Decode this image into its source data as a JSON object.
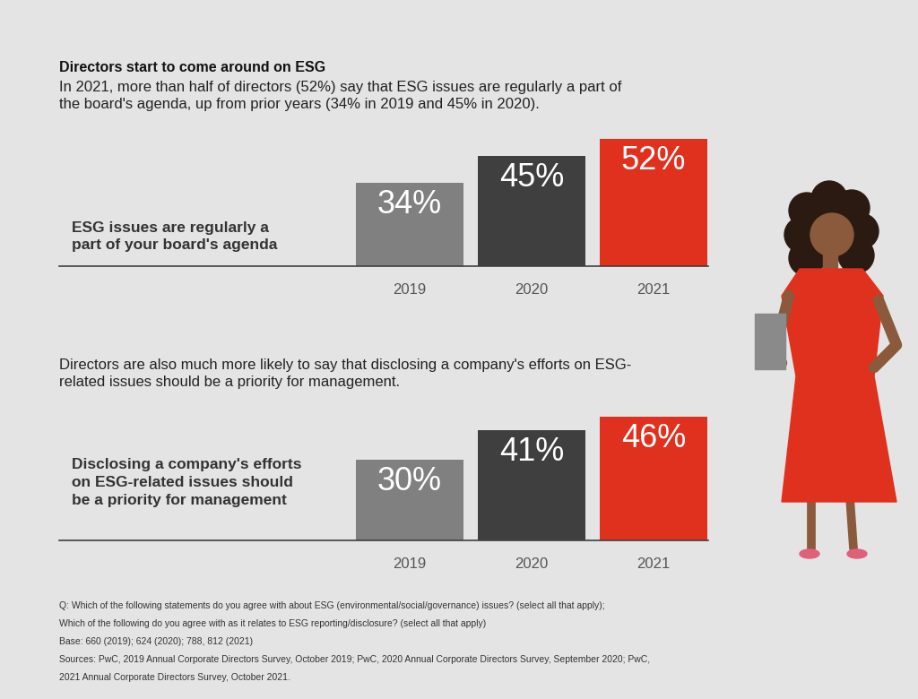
{
  "chart_data": [
    {
      "type": "bar",
      "title": "Directors start to come around on ESG",
      "subtitle": "In 2021, more than half of directors (52%) say that ESG issues are regularly a part of the board's agenda, up from prior years (34% in 2019 and 45% in 2020).",
      "ylabel": "ESG issues are regularly a part of your board's agenda",
      "categories": [
        "2019",
        "2020",
        "2021"
      ],
      "values": [
        34,
        45,
        52
      ],
      "value_labels": [
        "34%",
        "45%",
        "52%"
      ],
      "colors": [
        "#808080",
        "#3f3f3f",
        "#e0301e"
      ],
      "ylim": [
        0,
        55
      ],
      "data_labels": true,
      "tick_labels": "x",
      "grid": false
    },
    {
      "type": "bar",
      "subtitle": "Directors are also much more likely to say that disclosing a company's efforts on ESG-related issues should be a priority for management.",
      "ylabel": "Disclosing a company's efforts on ESG-related issues should be a priority for management",
      "categories": [
        "2019",
        "2020",
        "2021"
      ],
      "values": [
        30,
        41,
        46
      ],
      "value_labels": [
        "30%",
        "41%",
        "46%"
      ],
      "colors": [
        "#808080",
        "#3f3f3f",
        "#e0301e"
      ],
      "ylim": [
        0,
        50
      ],
      "data_labels": true,
      "tick_labels": "x",
      "grid": false
    }
  ],
  "notes": [
    "Q: Which of the following statements do you agree with about ESG (environmental/social/governance) issues? (select all that apply); Which of the following do you agree with as it relates to ESG reporting/disclosure? (select all that apply)",
    "Base: 660 (2019); 624 (2020); 788, 812 (2021)",
    "Sources: PwC, 2019 Annual Corporate Directors Survey, October 2019; PwC, 2020 Annual Corporate Directors Survey, September 2020; PwC, 2021 Annual Corporate Directors Survey, October 2021."
  ]
}
